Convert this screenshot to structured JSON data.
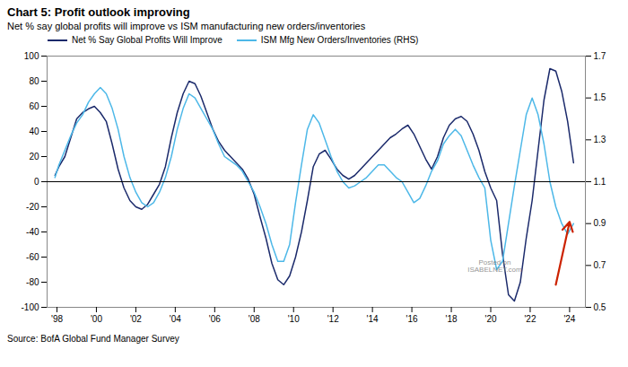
{
  "chart_data": {
    "type": "line",
    "title": "Chart 5: Profit outlook improving",
    "subtitle": "Net % say global profits will improve vs ISM manufacturing new orders/inventories",
    "caption": "Source: BofA Global Fund Manager Survey",
    "x": [
      1997.9,
      1998.1,
      1998.4,
      1998.7,
      1999.0,
      1999.3,
      1999.6,
      1999.9,
      2000.2,
      2000.5,
      2000.8,
      2001.1,
      2001.4,
      2001.7,
      2002.0,
      2002.3,
      2002.6,
      2002.9,
      2003.2,
      2003.5,
      2003.8,
      2004.1,
      2004.4,
      2004.7,
      2005.0,
      2005.3,
      2005.6,
      2005.9,
      2006.2,
      2006.5,
      2006.8,
      2007.1,
      2007.4,
      2007.7,
      2008.0,
      2008.3,
      2008.6,
      2008.9,
      2009.2,
      2009.5,
      2009.8,
      2010.1,
      2010.4,
      2010.7,
      2011.0,
      2011.3,
      2011.6,
      2011.9,
      2012.2,
      2012.5,
      2012.8,
      2013.1,
      2013.4,
      2013.7,
      2014.0,
      2014.3,
      2014.6,
      2014.9,
      2015.2,
      2015.5,
      2015.8,
      2016.1,
      2016.4,
      2016.7,
      2017.0,
      2017.3,
      2017.6,
      2017.9,
      2018.2,
      2018.5,
      2018.8,
      2019.1,
      2019.4,
      2019.7,
      2020.0,
      2020.3,
      2020.6,
      2020.9,
      2021.2,
      2021.5,
      2021.8,
      2022.1,
      2022.4,
      2022.7,
      2023.0,
      2023.3,
      2023.6,
      2023.9,
      2024.2
    ],
    "series": [
      {
        "name": "Net % Say Global Profits Will Improve",
        "color": "#1b2a6b",
        "values": [
          5,
          12,
          20,
          35,
          50,
          55,
          58,
          60,
          55,
          48,
          30,
          10,
          -5,
          -15,
          -20,
          -22,
          -18,
          -10,
          -2,
          12,
          35,
          55,
          70,
          80,
          78,
          68,
          55,
          42,
          32,
          25,
          20,
          15,
          10,
          2,
          -10,
          -28,
          -45,
          -65,
          -78,
          -82,
          -75,
          -60,
          -40,
          -15,
          12,
          22,
          25,
          18,
          10,
          5,
          2,
          5,
          10,
          15,
          20,
          25,
          30,
          35,
          38,
          42,
          45,
          38,
          28,
          18,
          10,
          20,
          35,
          45,
          50,
          52,
          48,
          38,
          25,
          8,
          -5,
          -15,
          -58,
          -90,
          -95,
          -80,
          -45,
          -15,
          25,
          65,
          90,
          88,
          72,
          48,
          15
        ]
      },
      {
        "name": "ISM Mfg New Orders/Inventories (RHS)",
        "color": "#4db8e8",
        "axis": "y2",
        "values": [
          1.12,
          1.18,
          1.25,
          1.32,
          1.38,
          1.42,
          1.48,
          1.52,
          1.55,
          1.52,
          1.45,
          1.35,
          1.22,
          1.12,
          1.05,
          1.0,
          0.98,
          1.0,
          1.05,
          1.12,
          1.22,
          1.35,
          1.45,
          1.52,
          1.5,
          1.45,
          1.4,
          1.35,
          1.28,
          1.22,
          1.2,
          1.18,
          1.15,
          1.1,
          1.05,
          0.98,
          0.9,
          0.8,
          0.72,
          0.72,
          0.8,
          1.0,
          1.18,
          1.35,
          1.42,
          1.38,
          1.3,
          1.22,
          1.15,
          1.1,
          1.07,
          1.08,
          1.1,
          1.12,
          1.15,
          1.18,
          1.18,
          1.15,
          1.12,
          1.1,
          1.05,
          1.0,
          1.02,
          1.08,
          1.15,
          1.2,
          1.28,
          1.32,
          1.35,
          1.32,
          1.25,
          1.18,
          1.12,
          1.07,
          0.82,
          0.68,
          0.72,
          0.9,
          1.08,
          1.25,
          1.42,
          1.5,
          1.42,
          1.28,
          1.1,
          0.98,
          0.9,
          0.85,
          0.9
        ]
      }
    ],
    "xlim": [
      1997.5,
      2024.8
    ],
    "xticks": [
      {
        "value": 1998,
        "label": "'98"
      },
      {
        "value": 2000,
        "label": "'00"
      },
      {
        "value": 2002,
        "label": "'02"
      },
      {
        "value": 2004,
        "label": "'04"
      },
      {
        "value": 2006,
        "label": "'06"
      },
      {
        "value": 2008,
        "label": "'08"
      },
      {
        "value": 2010,
        "label": "'10"
      },
      {
        "value": 2012,
        "label": "'12"
      },
      {
        "value": 2014,
        "label": "'14"
      },
      {
        "value": 2016,
        "label": "'16"
      },
      {
        "value": 2018,
        "label": "'18"
      },
      {
        "value": 2020,
        "label": "'20"
      },
      {
        "value": 2022,
        "label": "'22"
      },
      {
        "value": 2024,
        "label": "'24"
      }
    ],
    "ylim": [
      -100,
      100
    ],
    "yticks": [
      -100,
      -80,
      -60,
      -40,
      -20,
      0,
      20,
      40,
      60,
      80,
      100
    ],
    "y2lim": [
      0.5,
      1.7
    ],
    "y2ticks": [
      0.5,
      0.7,
      0.9,
      1.1,
      1.3,
      1.5,
      1.7
    ],
    "grid": false,
    "legend": "upper left",
    "annotations": [
      {
        "type": "hline",
        "y": 0,
        "color": "black"
      },
      {
        "type": "arrow",
        "x": 2023.3,
        "y": -82,
        "x2": 2024.0,
        "y2": -32,
        "color": "#cc2200"
      },
      {
        "type": "text",
        "text": "Posted on\nISABELNET.com",
        "x": 2020.2,
        "y": -72,
        "color": "gray"
      }
    ]
  }
}
